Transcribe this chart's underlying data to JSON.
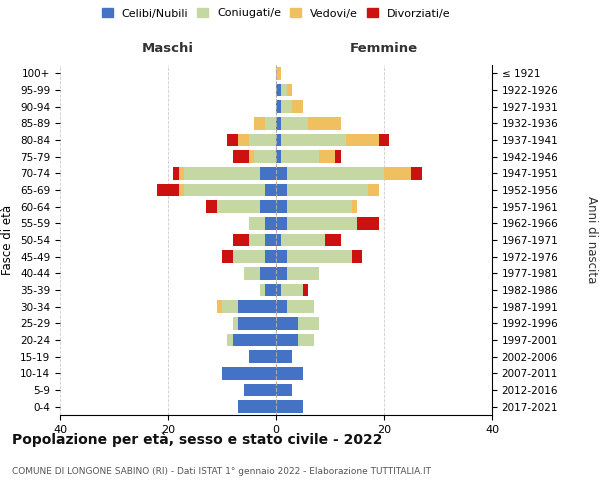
{
  "age_groups": [
    "0-4",
    "5-9",
    "10-14",
    "15-19",
    "20-24",
    "25-29",
    "30-34",
    "35-39",
    "40-44",
    "45-49",
    "50-54",
    "55-59",
    "60-64",
    "65-69",
    "70-74",
    "75-79",
    "80-84",
    "85-89",
    "90-94",
    "95-99",
    "100+"
  ],
  "birth_years": [
    "2017-2021",
    "2012-2016",
    "2007-2011",
    "2002-2006",
    "1997-2001",
    "1992-1996",
    "1987-1991",
    "1982-1986",
    "1977-1981",
    "1972-1976",
    "1967-1971",
    "1962-1966",
    "1957-1961",
    "1952-1956",
    "1947-1951",
    "1942-1946",
    "1937-1941",
    "1932-1936",
    "1927-1931",
    "1922-1926",
    "≤ 1921"
  ],
  "colors": {
    "celibi": "#4472c4",
    "coniugati": "#c5d8a4",
    "vedovi": "#f0c060",
    "divorziati": "#cc1111"
  },
  "maschi": {
    "celibi": [
      7,
      6,
      10,
      5,
      8,
      7,
      7,
      2,
      3,
      2,
      2,
      2,
      3,
      2,
      3,
      0,
      0,
      0,
      0,
      0,
      0
    ],
    "coniugati": [
      0,
      0,
      0,
      0,
      1,
      1,
      3,
      1,
      3,
      6,
      3,
      3,
      8,
      15,
      14,
      4,
      5,
      2,
      0,
      0,
      0
    ],
    "vedovi": [
      0,
      0,
      0,
      0,
      0,
      0,
      1,
      0,
      0,
      0,
      0,
      0,
      0,
      1,
      1,
      1,
      2,
      2,
      0,
      0,
      0
    ],
    "divorziati": [
      0,
      0,
      0,
      0,
      0,
      0,
      0,
      0,
      0,
      2,
      3,
      0,
      2,
      4,
      1,
      3,
      2,
      0,
      0,
      0,
      0
    ]
  },
  "femmine": {
    "celibi": [
      5,
      3,
      5,
      3,
      4,
      4,
      2,
      1,
      2,
      2,
      1,
      2,
      2,
      2,
      2,
      1,
      1,
      1,
      1,
      1,
      0
    ],
    "coniugati": [
      0,
      0,
      0,
      0,
      3,
      4,
      5,
      4,
      6,
      12,
      8,
      13,
      12,
      15,
      18,
      7,
      12,
      5,
      2,
      1,
      0
    ],
    "vedovi": [
      0,
      0,
      0,
      0,
      0,
      0,
      0,
      0,
      0,
      0,
      0,
      0,
      1,
      2,
      5,
      3,
      6,
      6,
      2,
      1,
      1
    ],
    "divorziati": [
      0,
      0,
      0,
      0,
      0,
      0,
      0,
      1,
      0,
      2,
      3,
      4,
      0,
      0,
      2,
      1,
      2,
      0,
      0,
      0,
      0
    ]
  },
  "xlim": 40,
  "title": "Popolazione per età, sesso e stato civile - 2022",
  "subtitle": "COMUNE DI LONGONE SABINO (RI) - Dati ISTAT 1° gennaio 2022 - Elaborazione TUTTITALIA.IT",
  "xlabel_left": "Maschi",
  "xlabel_right": "Femmine",
  "ylabel_left": "Fasce di età",
  "ylabel_right": "Anni di nascita",
  "background_color": "#ffffff",
  "grid_color": "#cccccc",
  "legend_labels": [
    "Celibi/Nubili",
    "Coniugati/e",
    "Vedovi/e",
    "Divorziati/e"
  ]
}
